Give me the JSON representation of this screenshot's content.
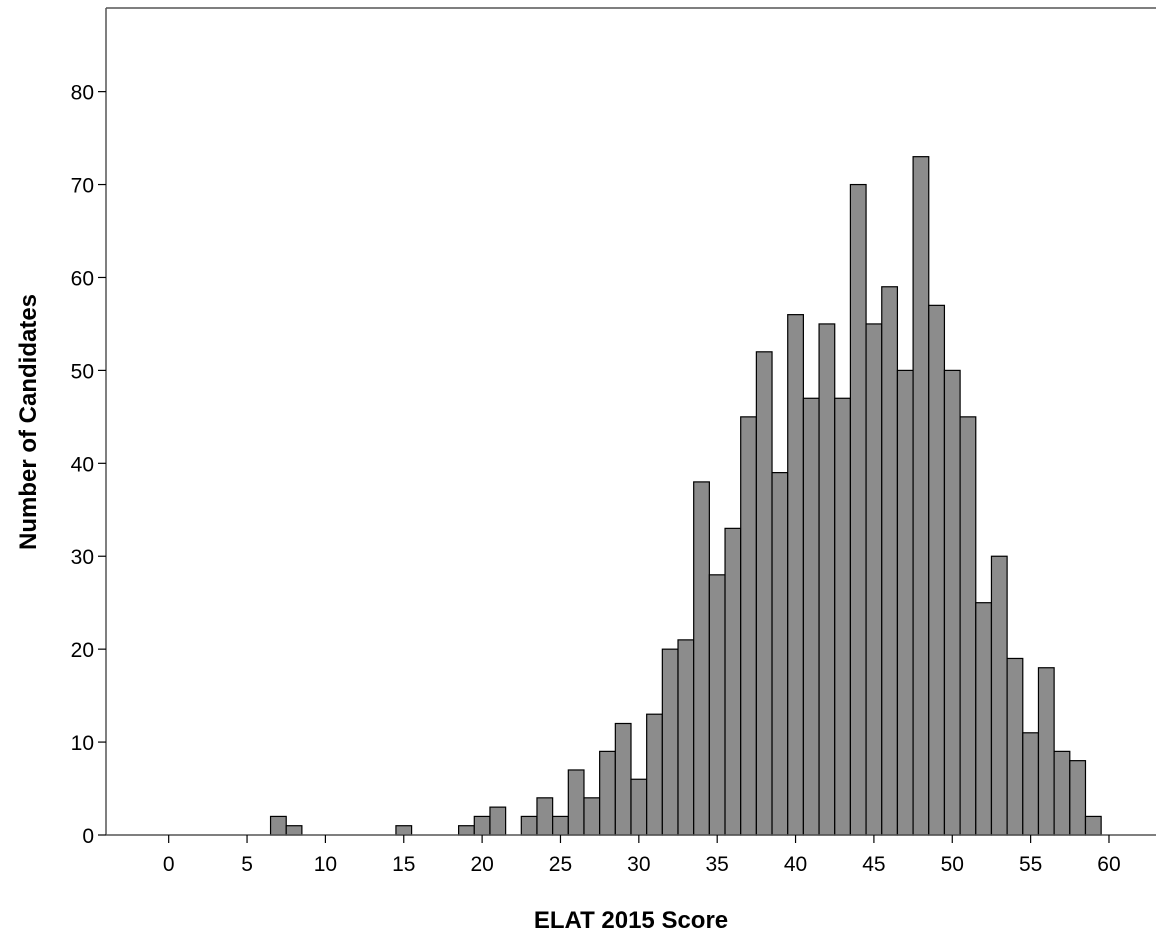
{
  "chart_data": {
    "type": "bar",
    "title": "",
    "xlabel": "ELAT 2015 Score",
    "ylabel": "Number of Candidates",
    "bin_width": 1,
    "x": [
      7,
      8,
      15,
      19,
      20,
      21,
      23,
      24,
      25,
      26,
      27,
      28,
      29,
      30,
      31,
      32,
      33,
      34,
      35,
      36,
      37,
      38,
      39,
      40,
      41,
      42,
      43,
      44,
      45,
      46,
      47,
      48,
      49,
      50,
      51,
      52,
      53,
      54,
      55,
      56,
      57,
      58,
      59
    ],
    "values": [
      2,
      1,
      1,
      1,
      2,
      3,
      2,
      4,
      2,
      7,
      4,
      9,
      12,
      6,
      13,
      20,
      21,
      38,
      28,
      33,
      45,
      52,
      39,
      56,
      47,
      55,
      47,
      70,
      55,
      59,
      50,
      73,
      57,
      50,
      45,
      25,
      30,
      19,
      11,
      18,
      9,
      8,
      2
    ],
    "xlim": [
      -4,
      63
    ],
    "ylim": [
      0,
      89
    ],
    "xticks": [
      0,
      5,
      10,
      15,
      20,
      25,
      30,
      35,
      40,
      45,
      50,
      55,
      60
    ],
    "yticks": [
      0,
      10,
      20,
      30,
      40,
      50,
      60,
      70,
      80
    ],
    "bar_color": "#8c8c8c",
    "bar_edge_color": "#000000",
    "grid": false,
    "legend": "none"
  }
}
